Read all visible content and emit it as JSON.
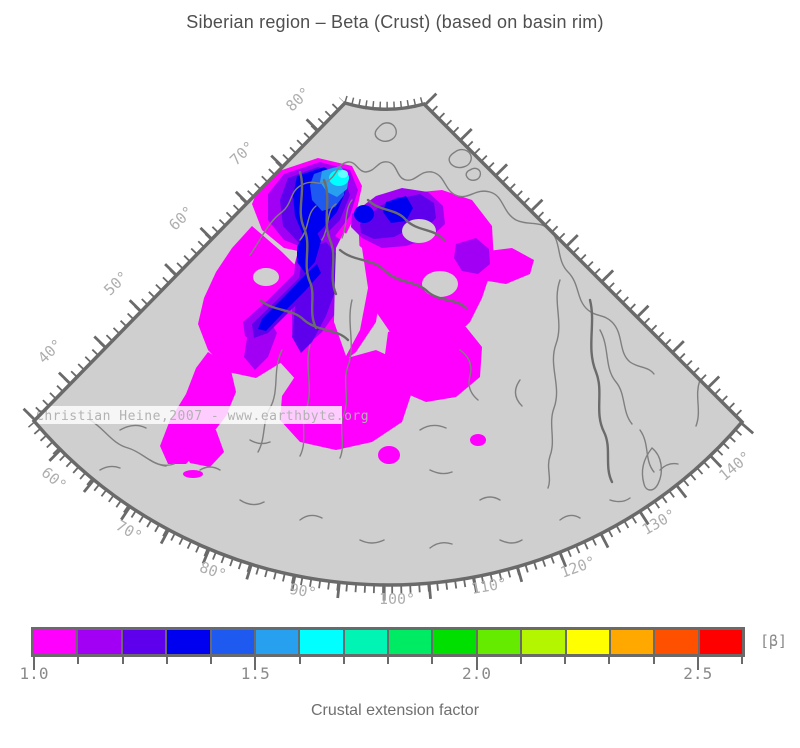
{
  "title": "Siberian region – Beta (Crust) (based on basin rim)",
  "watermark": "Christian Heine,2007 - www.earthbyte.org",
  "caption": "Crustal extension factor",
  "map": {
    "latitude_labels": [
      "80°",
      "70°",
      "60°",
      "50°",
      "40°"
    ],
    "longitude_labels": [
      "60°",
      "70°",
      "80°",
      "90°",
      "100°",
      "110°",
      "120°",
      "130°",
      "140°"
    ]
  },
  "colorbar": {
    "unit_label": "[β]",
    "tick_labels": [
      "1.0",
      "1.5",
      "2.0",
      "2.5"
    ],
    "min": 1.0,
    "max": 2.6,
    "step": 0.1,
    "colors": [
      "#ff00ff",
      "#a100f5",
      "#5e00eb",
      "#0000f0",
      "#1e5af0",
      "#28a0f0",
      "#00ffff",
      "#00f5b4",
      "#00eb64",
      "#00e000",
      "#64eb00",
      "#b4f500",
      "#ffff00",
      "#ffa800",
      "#ff5000",
      "#ff0000"
    ]
  },
  "theme": {
    "land": "#cfcfcf",
    "coast": "#7f7f7f",
    "coast_bold": "#6b6b6b",
    "frame": "#6a6a6a",
    "map_label": "#aeaeae",
    "title_color": "#4f4f4f",
    "tick_label": "#8a8a8a",
    "watermark_color": "#b2b2b2",
    "cyan_highlight": "#66ffff"
  }
}
